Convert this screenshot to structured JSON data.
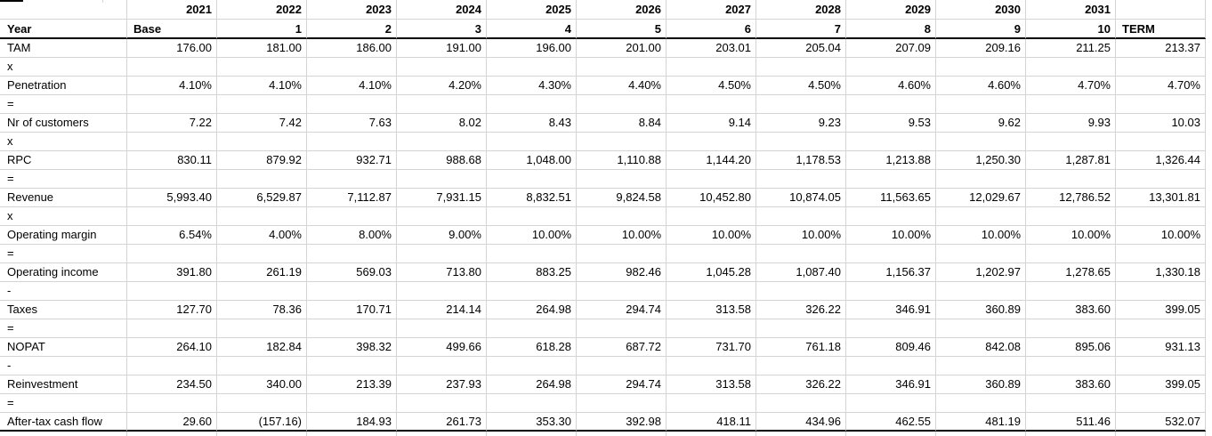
{
  "app": {
    "description": "Spreadsheet financial model (DCF cash flow build-up)"
  },
  "colors": {
    "gridline": "#d4d4d4",
    "rule": "#000000",
    "background": "#ffffff",
    "text": "#000000"
  },
  "table": {
    "year_header_row": {
      "label": "",
      "cells": [
        "2021",
        "2022",
        "2023",
        "2024",
        "2025",
        "2026",
        "2027",
        "2028",
        "2029",
        "2030",
        "2031",
        ""
      ]
    },
    "period_header_row": {
      "label": "Year",
      "cells": [
        "Base",
        "1",
        "2",
        "3",
        "4",
        "5",
        "6",
        "7",
        "8",
        "9",
        "10",
        "TERM"
      ]
    },
    "rows": [
      {
        "kind": "data",
        "label": "TAM",
        "values": [
          "176.00",
          "181.00",
          "186.00",
          "191.00",
          "196.00",
          "201.00",
          "203.01",
          "205.04",
          "207.09",
          "209.16",
          "211.25",
          "213.37"
        ]
      },
      {
        "kind": "operator",
        "label": "x",
        "values": []
      },
      {
        "kind": "data",
        "label": "Penetration",
        "values": [
          "4.10%",
          "4.10%",
          "4.10%",
          "4.20%",
          "4.30%",
          "4.40%",
          "4.50%",
          "4.50%",
          "4.60%",
          "4.60%",
          "4.70%",
          "4.70%"
        ]
      },
      {
        "kind": "operator",
        "label": "=",
        "values": []
      },
      {
        "kind": "data",
        "label": "Nr of customers",
        "values": [
          "7.22",
          "7.42",
          "7.63",
          "8.02",
          "8.43",
          "8.84",
          "9.14",
          "9.23",
          "9.53",
          "9.62",
          "9.93",
          "10.03"
        ]
      },
      {
        "kind": "operator",
        "label": "x",
        "values": []
      },
      {
        "kind": "data",
        "label": "RPC",
        "values": [
          "830.11",
          "879.92",
          "932.71",
          "988.68",
          "1,048.00",
          "1,110.88",
          "1,144.20",
          "1,178.53",
          "1,213.88",
          "1,250.30",
          "1,287.81",
          "1,326.44"
        ]
      },
      {
        "kind": "operator",
        "label": "=",
        "values": []
      },
      {
        "kind": "data",
        "label": "Revenue",
        "values": [
          "5,993.40",
          "6,529.87",
          "7,112.87",
          "7,931.15",
          "8,832.51",
          "9,824.58",
          "10,452.80",
          "10,874.05",
          "11,563.65",
          "12,029.67",
          "12,786.52",
          "13,301.81"
        ]
      },
      {
        "kind": "operator",
        "label": "x",
        "values": []
      },
      {
        "kind": "data",
        "label": "Operating margin",
        "values": [
          "6.54%",
          "4.00%",
          "8.00%",
          "9.00%",
          "10.00%",
          "10.00%",
          "10.00%",
          "10.00%",
          "10.00%",
          "10.00%",
          "10.00%",
          "10.00%"
        ]
      },
      {
        "kind": "operator",
        "label": "=",
        "values": []
      },
      {
        "kind": "data",
        "label": "Operating income",
        "values": [
          "391.80",
          "261.19",
          "569.03",
          "713.80",
          "883.25",
          "982.46",
          "1,045.28",
          "1,087.40",
          "1,156.37",
          "1,202.97",
          "1,278.65",
          "1,330.18"
        ]
      },
      {
        "kind": "operator",
        "label": "-",
        "values": []
      },
      {
        "kind": "data",
        "label": "Taxes",
        "values": [
          "127.70",
          "78.36",
          "170.71",
          "214.14",
          "264.98",
          "294.74",
          "313.58",
          "326.22",
          "346.91",
          "360.89",
          "383.60",
          "399.05"
        ]
      },
      {
        "kind": "operator",
        "label": "=",
        "values": []
      },
      {
        "kind": "data",
        "label": "NOPAT",
        "values": [
          "264.10",
          "182.84",
          "398.32",
          "499.66",
          "618.28",
          "687.72",
          "731.70",
          "761.18",
          "809.46",
          "842.08",
          "895.06",
          "931.13"
        ]
      },
      {
        "kind": "operator",
        "label": "-",
        "values": []
      },
      {
        "kind": "data",
        "label": "Reinvestment",
        "values": [
          "234.50",
          "340.00",
          "213.39",
          "237.93",
          "264.98",
          "294.74",
          "313.58",
          "326.22",
          "346.91",
          "360.89",
          "383.60",
          "399.05"
        ]
      },
      {
        "kind": "operator",
        "label": "=",
        "values": []
      },
      {
        "kind": "data",
        "label": "After-tax cash flow",
        "values": [
          "29.60",
          "(157.16)",
          "184.93",
          "261.73",
          "353.30",
          "392.98",
          "418.11",
          "434.96",
          "462.55",
          "481.19",
          "511.46",
          "532.07"
        ]
      }
    ]
  }
}
